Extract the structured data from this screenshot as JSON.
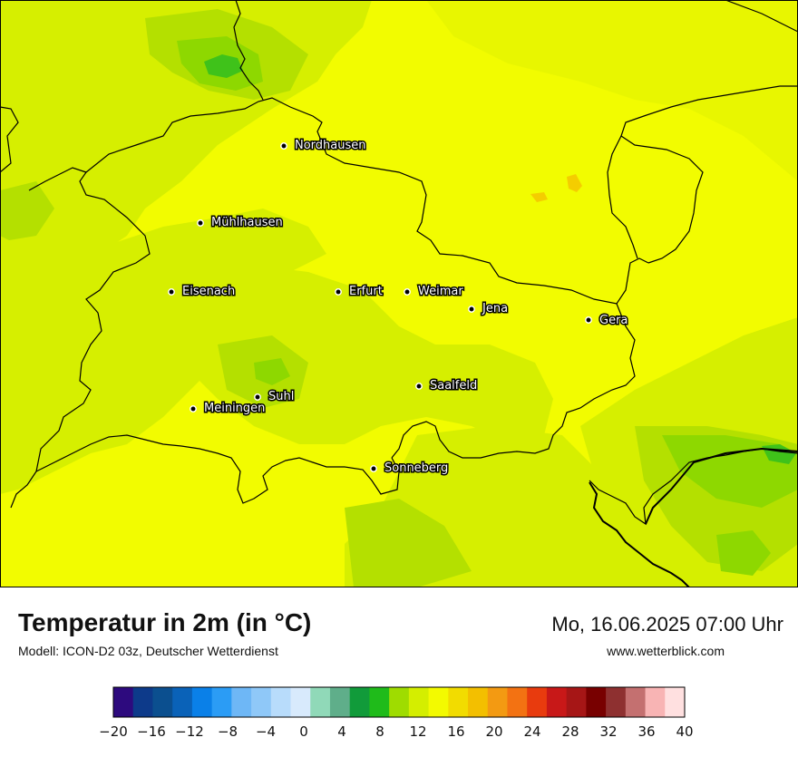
{
  "title": "Temperatur in 2m (in °C)",
  "subtitle": "Modell: ICON-D2 03z, Deutscher Wetterdienst",
  "datetime": "Mo, 16.06.2025 07:00 Uhr",
  "website": "www.wetterblick.com",
  "cities": [
    {
      "id": "nordhausen",
      "name": "Nordhausen"
    },
    {
      "id": "muehlhausen",
      "name": "Mühlhausen"
    },
    {
      "id": "eisenach",
      "name": "Eisenach"
    },
    {
      "id": "erfurt",
      "name": "Erfurt"
    },
    {
      "id": "weimar",
      "name": "Weimar"
    },
    {
      "id": "jena",
      "name": "Jena"
    },
    {
      "id": "gera",
      "name": "Gera"
    },
    {
      "id": "saalfeld",
      "name": "Saalfeld"
    },
    {
      "id": "suhl",
      "name": "Suhl"
    },
    {
      "id": "meiningen",
      "name": "Meiningen"
    },
    {
      "id": "sonneberg",
      "name": "Sonneberg"
    }
  ],
  "legend": {
    "min": -20,
    "max": 40,
    "step": 2,
    "tick_labels": [
      "−20",
      "−16",
      "−12",
      "−8",
      "−4",
      "0",
      "4",
      "8",
      "12",
      "16",
      "20",
      "24",
      "28",
      "32",
      "36",
      "40"
    ],
    "colors": [
      "#2d0a7e",
      "#0d3a8a",
      "#0b4f8f",
      "#0a62b8",
      "#0a80e8",
      "#2b9cf5",
      "#6eb7f6",
      "#8fc8f8",
      "#b8dcfb",
      "#d8eafc",
      "#90d9b8",
      "#5fae8a",
      "#119b3a",
      "#1fbb1a",
      "#9fdc00",
      "#d4ee00",
      "#f3fa00",
      "#f2dc00",
      "#f3bf00",
      "#f39a12",
      "#f37212",
      "#e83b0e",
      "#c81818",
      "#a61616",
      "#780000",
      "#8e3030",
      "#c47070",
      "#f8b4b4",
      "#ffe0e0"
    ]
  },
  "map_colors": {
    "base": "#f2fc00",
    "light_green": "#d6ef00",
    "mid_green": "#b4e000",
    "green": "#8ed800",
    "dark_green": "#3fc21a",
    "orange": "#f4cd00",
    "border": "#000000"
  }
}
